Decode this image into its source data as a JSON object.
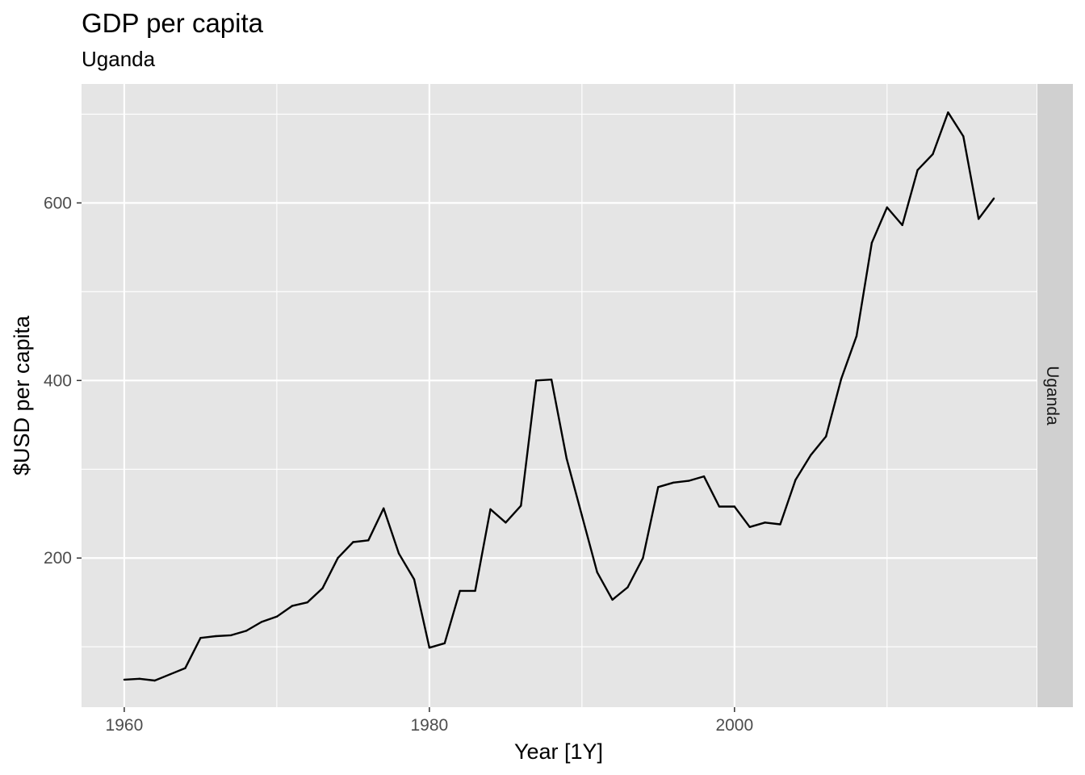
{
  "chart_data": {
    "type": "line",
    "title": "GDP per capita",
    "subtitle": "Uganda",
    "xlabel": "Year [1Y]",
    "ylabel": "$USD per capita",
    "facet_label": "Uganda",
    "xlim": [
      1957.2,
      2019.8
    ],
    "ylim": [
      32,
      734
    ],
    "x_ticks": [
      1960,
      1980,
      2000
    ],
    "x_minor_ticks": [
      1970,
      1990,
      2010
    ],
    "y_ticks": [
      200,
      400,
      600
    ],
    "y_minor_ticks": [
      100,
      300,
      500,
      700
    ],
    "grid": true,
    "colors": {
      "panel_background": "#e5e5e5",
      "grid": "#ffffff",
      "line": "#000000",
      "strip_background": "#d0d0d0"
    },
    "series": [
      {
        "x": [
          1960,
          1961,
          1962,
          1963,
          1964,
          1965,
          1966,
          1967,
          1968,
          1969,
          1970,
          1971,
          1972,
          1973,
          1974,
          1975,
          1976,
          1977,
          1978,
          1979,
          1980,
          1981,
          1982,
          1983,
          1984,
          1985,
          1986,
          1987,
          1988,
          1989,
          1990,
          1991,
          1992,
          1993,
          1994,
          1995,
          1996,
          1997,
          1998,
          1999,
          2000,
          2001,
          2002,
          2003,
          2004,
          2005,
          2006,
          2007,
          2008,
          2009,
          2010,
          2011,
          2012,
          2013,
          2014,
          2015,
          2016,
          2017
        ],
        "values": [
          63,
          64,
          62,
          69,
          76,
          110,
          112,
          113,
          118,
          128,
          134,
          146,
          150,
          166,
          200,
          218,
          220,
          256,
          205,
          176,
          99,
          104,
          163,
          163,
          255,
          240,
          259,
          400,
          401,
          312,
          248,
          184,
          153,
          167,
          200,
          280,
          285,
          287,
          292,
          258,
          258,
          235,
          240,
          238,
          288,
          316,
          337,
          402,
          450,
          555,
          595,
          575,
          637,
          655,
          702,
          675,
          582,
          605
        ]
      }
    ]
  }
}
